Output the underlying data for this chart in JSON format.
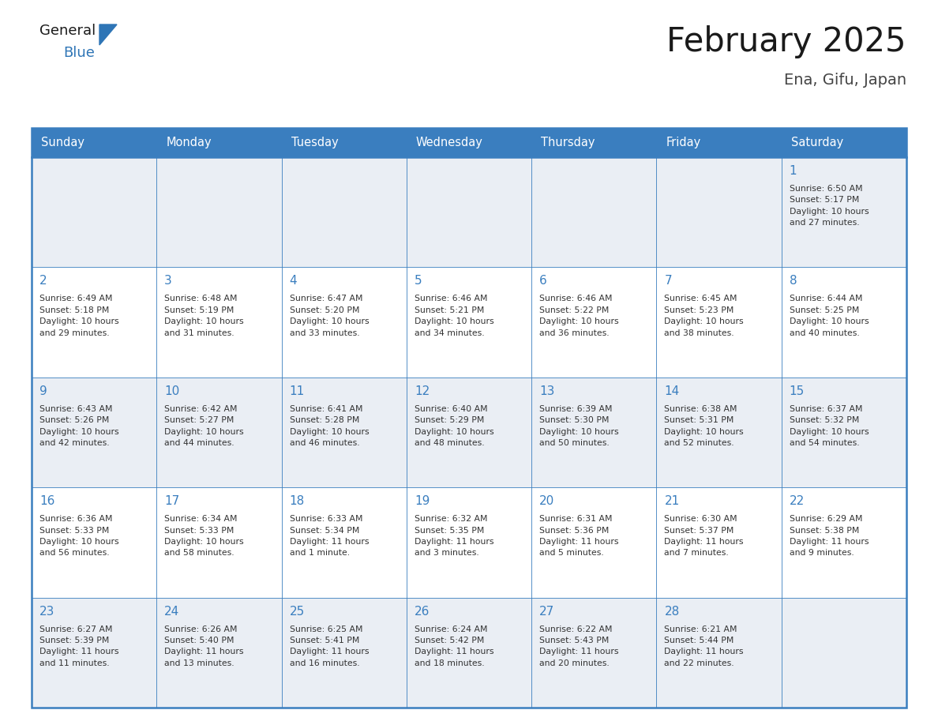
{
  "title": "February 2025",
  "subtitle": "Ena, Gifu, Japan",
  "header_bg": "#3A7EBF",
  "header_text_color": "#FFFFFF",
  "days_of_week": [
    "Sunday",
    "Monday",
    "Tuesday",
    "Wednesday",
    "Thursday",
    "Friday",
    "Saturday"
  ],
  "cell_bg_light": "#EAEEF4",
  "cell_bg_white": "#FFFFFF",
  "border_color": "#3A7EBF",
  "day_num_color": "#3A7EBF",
  "info_text_color": "#333333",
  "title_color": "#1A1A1A",
  "subtitle_color": "#444444",
  "logo_general_color": "#1A1A1A",
  "logo_blue_color": "#2E75B6",
  "weeks": [
    [
      {
        "day": null,
        "info": ""
      },
      {
        "day": null,
        "info": ""
      },
      {
        "day": null,
        "info": ""
      },
      {
        "day": null,
        "info": ""
      },
      {
        "day": null,
        "info": ""
      },
      {
        "day": null,
        "info": ""
      },
      {
        "day": 1,
        "info": "Sunrise: 6:50 AM\nSunset: 5:17 PM\nDaylight: 10 hours\nand 27 minutes."
      }
    ],
    [
      {
        "day": 2,
        "info": "Sunrise: 6:49 AM\nSunset: 5:18 PM\nDaylight: 10 hours\nand 29 minutes."
      },
      {
        "day": 3,
        "info": "Sunrise: 6:48 AM\nSunset: 5:19 PM\nDaylight: 10 hours\nand 31 minutes."
      },
      {
        "day": 4,
        "info": "Sunrise: 6:47 AM\nSunset: 5:20 PM\nDaylight: 10 hours\nand 33 minutes."
      },
      {
        "day": 5,
        "info": "Sunrise: 6:46 AM\nSunset: 5:21 PM\nDaylight: 10 hours\nand 34 minutes."
      },
      {
        "day": 6,
        "info": "Sunrise: 6:46 AM\nSunset: 5:22 PM\nDaylight: 10 hours\nand 36 minutes."
      },
      {
        "day": 7,
        "info": "Sunrise: 6:45 AM\nSunset: 5:23 PM\nDaylight: 10 hours\nand 38 minutes."
      },
      {
        "day": 8,
        "info": "Sunrise: 6:44 AM\nSunset: 5:25 PM\nDaylight: 10 hours\nand 40 minutes."
      }
    ],
    [
      {
        "day": 9,
        "info": "Sunrise: 6:43 AM\nSunset: 5:26 PM\nDaylight: 10 hours\nand 42 minutes."
      },
      {
        "day": 10,
        "info": "Sunrise: 6:42 AM\nSunset: 5:27 PM\nDaylight: 10 hours\nand 44 minutes."
      },
      {
        "day": 11,
        "info": "Sunrise: 6:41 AM\nSunset: 5:28 PM\nDaylight: 10 hours\nand 46 minutes."
      },
      {
        "day": 12,
        "info": "Sunrise: 6:40 AM\nSunset: 5:29 PM\nDaylight: 10 hours\nand 48 minutes."
      },
      {
        "day": 13,
        "info": "Sunrise: 6:39 AM\nSunset: 5:30 PM\nDaylight: 10 hours\nand 50 minutes."
      },
      {
        "day": 14,
        "info": "Sunrise: 6:38 AM\nSunset: 5:31 PM\nDaylight: 10 hours\nand 52 minutes."
      },
      {
        "day": 15,
        "info": "Sunrise: 6:37 AM\nSunset: 5:32 PM\nDaylight: 10 hours\nand 54 minutes."
      }
    ],
    [
      {
        "day": 16,
        "info": "Sunrise: 6:36 AM\nSunset: 5:33 PM\nDaylight: 10 hours\nand 56 minutes."
      },
      {
        "day": 17,
        "info": "Sunrise: 6:34 AM\nSunset: 5:33 PM\nDaylight: 10 hours\nand 58 minutes."
      },
      {
        "day": 18,
        "info": "Sunrise: 6:33 AM\nSunset: 5:34 PM\nDaylight: 11 hours\nand 1 minute."
      },
      {
        "day": 19,
        "info": "Sunrise: 6:32 AM\nSunset: 5:35 PM\nDaylight: 11 hours\nand 3 minutes."
      },
      {
        "day": 20,
        "info": "Sunrise: 6:31 AM\nSunset: 5:36 PM\nDaylight: 11 hours\nand 5 minutes."
      },
      {
        "day": 21,
        "info": "Sunrise: 6:30 AM\nSunset: 5:37 PM\nDaylight: 11 hours\nand 7 minutes."
      },
      {
        "day": 22,
        "info": "Sunrise: 6:29 AM\nSunset: 5:38 PM\nDaylight: 11 hours\nand 9 minutes."
      }
    ],
    [
      {
        "day": 23,
        "info": "Sunrise: 6:27 AM\nSunset: 5:39 PM\nDaylight: 11 hours\nand 11 minutes."
      },
      {
        "day": 24,
        "info": "Sunrise: 6:26 AM\nSunset: 5:40 PM\nDaylight: 11 hours\nand 13 minutes."
      },
      {
        "day": 25,
        "info": "Sunrise: 6:25 AM\nSunset: 5:41 PM\nDaylight: 11 hours\nand 16 minutes."
      },
      {
        "day": 26,
        "info": "Sunrise: 6:24 AM\nSunset: 5:42 PM\nDaylight: 11 hours\nand 18 minutes."
      },
      {
        "day": 27,
        "info": "Sunrise: 6:22 AM\nSunset: 5:43 PM\nDaylight: 11 hours\nand 20 minutes."
      },
      {
        "day": 28,
        "info": "Sunrise: 6:21 AM\nSunset: 5:44 PM\nDaylight: 11 hours\nand 22 minutes."
      },
      {
        "day": null,
        "info": ""
      }
    ]
  ]
}
